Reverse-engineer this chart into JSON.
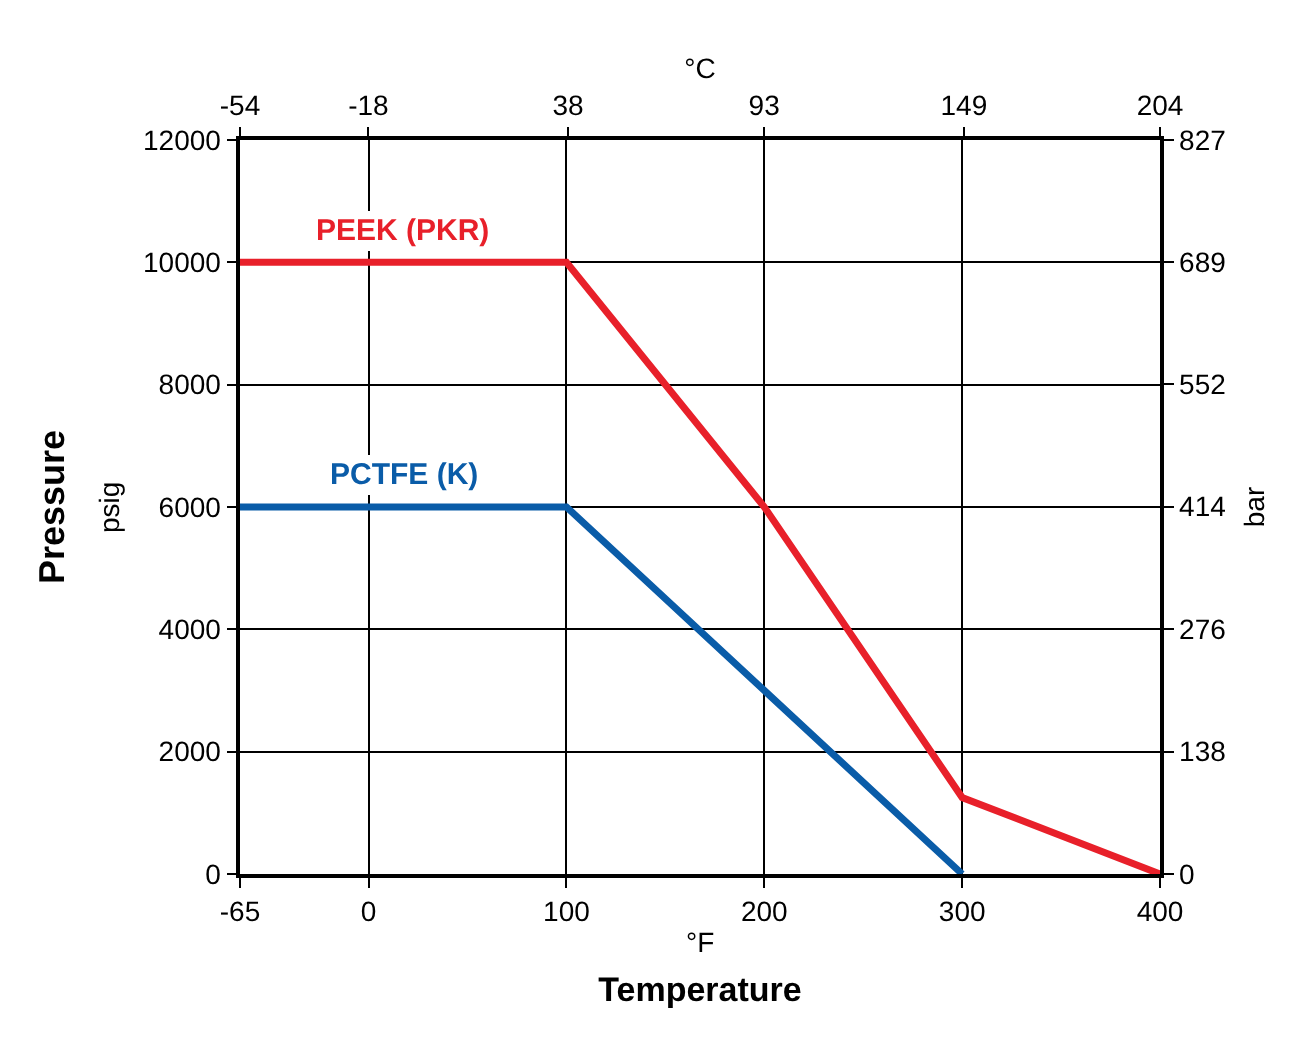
{
  "chart_data": {
    "type": "line",
    "xlabel": "Temperature",
    "ylabel": "Pressure",
    "y2label": "bar",
    "x2label": "°C",
    "annotations": [
      "psig",
      "°F"
    ],
    "xlim": [
      -65,
      400
    ],
    "xticks": [
      -65,
      0,
      100,
      200,
      300,
      400
    ],
    "x2lim": [
      -54,
      204
    ],
    "x2ticks": [
      -54,
      -18,
      38,
      93,
      149,
      204
    ],
    "ylim": [
      0,
      12000
    ],
    "yticks": [
      0,
      2000,
      4000,
      6000,
      8000,
      10000,
      12000
    ],
    "y2lim": [
      0,
      827
    ],
    "y2ticks": [
      0,
      138,
      276,
      414,
      552,
      689,
      827
    ],
    "grid": true,
    "legend": false,
    "marker": "none",
    "line_style": "solid",
    "series": [
      {
        "name": "PEEK (PKR)",
        "color": "#e8202a",
        "x": [
          -65,
          100,
          200,
          300,
          400
        ],
        "values": [
          10000,
          10000,
          6000,
          1250,
          0
        ]
      },
      {
        "name": "PCTFE (K)",
        "color": "#0a5ca8",
        "x": [
          -65,
          100,
          300
        ],
        "values": [
          6000,
          6000,
          0
        ]
      }
    ]
  }
}
